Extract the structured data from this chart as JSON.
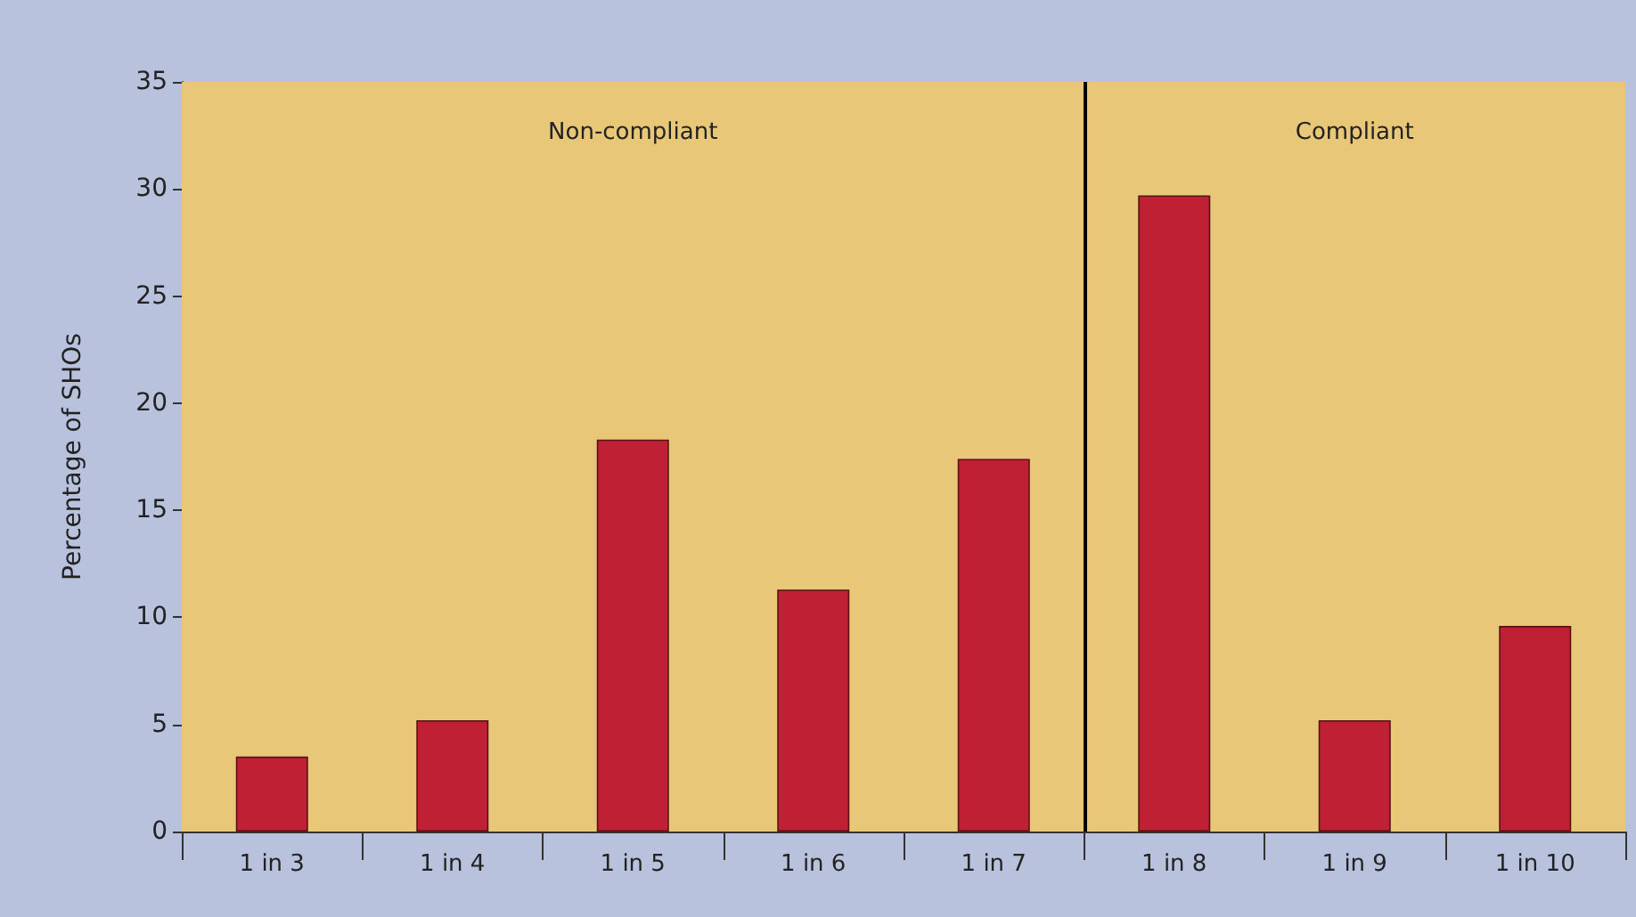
{
  "chart_data": {
    "type": "bar",
    "ylabel": "Percentage of SHOs",
    "categories": [
      "1 in 3",
      "1 in 4",
      "1 in 5",
      "1 in 6",
      "1 in 7",
      "1 in 8",
      "1 in 9",
      "1 in 10"
    ],
    "values": [
      3.5,
      5.2,
      18.3,
      11.3,
      17.4,
      29.7,
      5.2,
      9.6
    ],
    "color": "#c02033",
    "ylim": [
      0,
      35
    ],
    "yticks": [
      0,
      5,
      10,
      15,
      20,
      25,
      30,
      35
    ],
    "bands": [
      {
        "axis": "x",
        "from": "1 in 3",
        "to": "1 in 7",
        "label": "Non-compliant",
        "color": "#e8c878"
      },
      {
        "axis": "x",
        "from": "1 in 8",
        "to": "1 in 10",
        "label": "Compliant",
        "color": "#e8c878"
      }
    ]
  }
}
